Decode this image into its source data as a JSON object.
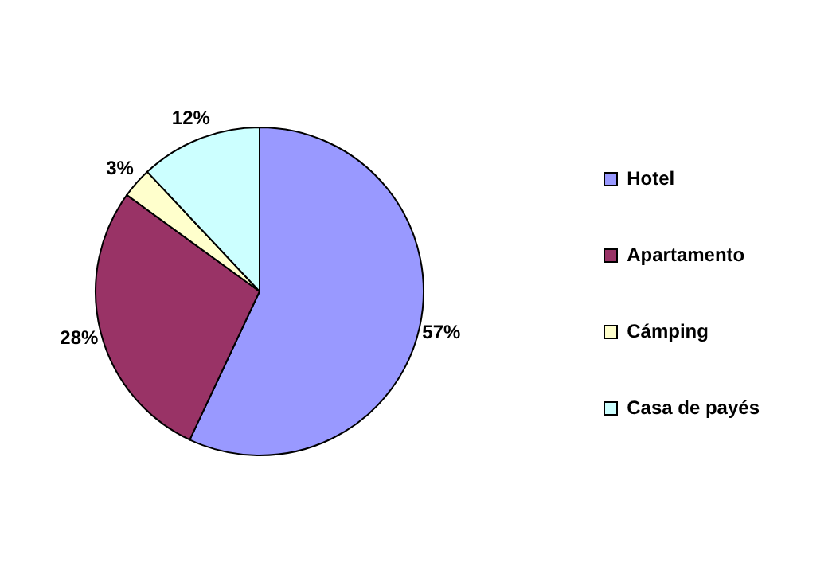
{
  "chart_data": {
    "type": "pie",
    "categories": [
      "Hotel",
      "Apartamento",
      "Cámping",
      "Casa de payés"
    ],
    "values": [
      57,
      28,
      3,
      12
    ],
    "value_labels": [
      "57%",
      "28%",
      "3%",
      "12%"
    ],
    "colors": [
      "#9999ff",
      "#993366",
      "#ffffcc",
      "#ccffff"
    ],
    "legend": "right"
  }
}
